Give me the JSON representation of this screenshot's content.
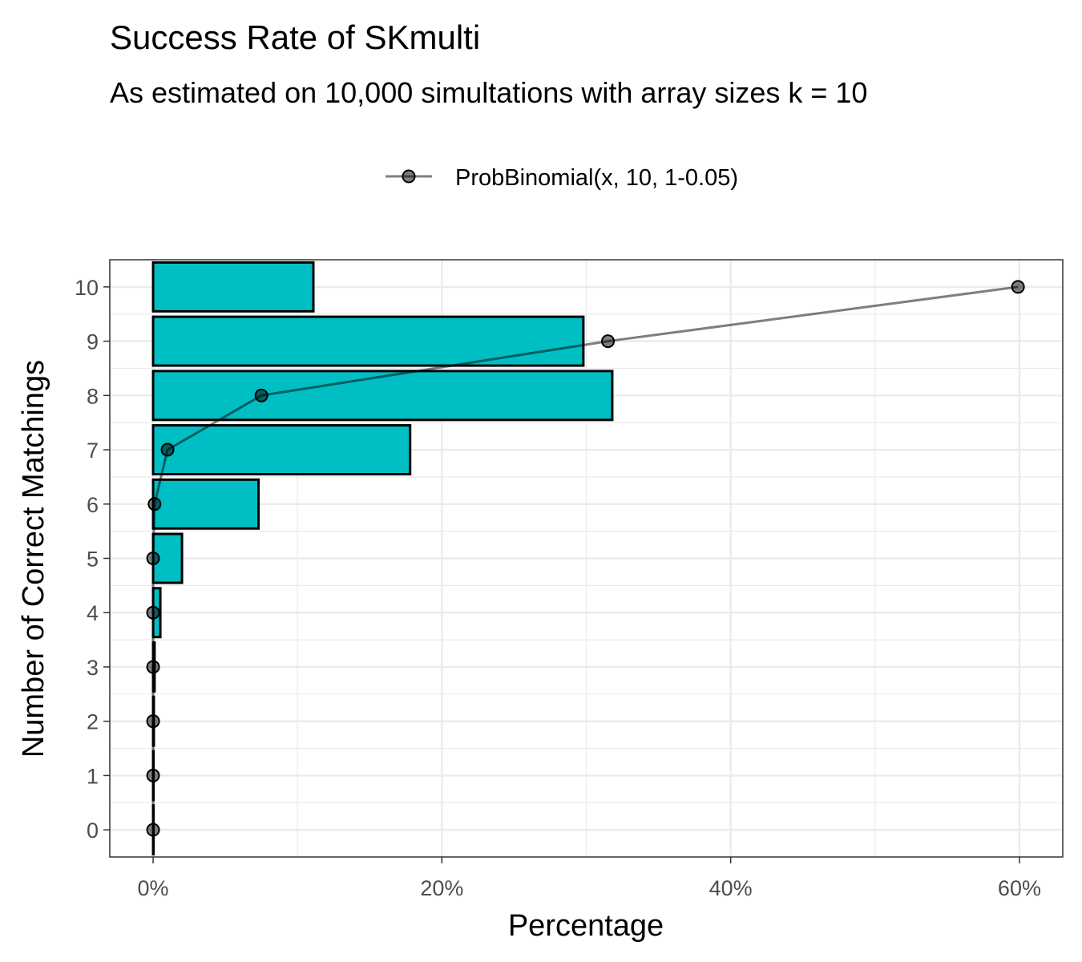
{
  "chart_data": {
    "type": "bar",
    "orientation": "horizontal",
    "title": "Success Rate of SKmulti",
    "subtitle": "As estimated on 10,000 simultations with array sizes k = 10",
    "xlabel": "Percentage",
    "ylabel": "Number of Correct Matchings",
    "x_unit": "%",
    "xlim": [
      -3,
      63
    ],
    "ylim": [
      -0.5,
      10.5
    ],
    "xticks": [
      0,
      20,
      40,
      60
    ],
    "xtick_labels": [
      "0%",
      "20%",
      "40%",
      "60%"
    ],
    "yticks": [
      0,
      1,
      2,
      3,
      4,
      5,
      6,
      7,
      8,
      9,
      10
    ],
    "ytick_labels": [
      "0",
      "1",
      "2",
      "3",
      "4",
      "5",
      "6",
      "7",
      "8",
      "9",
      "10"
    ],
    "grid": true,
    "legend_position": "top",
    "bar_color": "#00bfc4",
    "bar_outline": "#000000",
    "bars": {
      "categories": [
        0,
        1,
        2,
        3,
        4,
        5,
        6,
        7,
        8,
        9,
        10
      ],
      "values": [
        0,
        0.01,
        0.05,
        0.1,
        0.5,
        2.0,
        7.3,
        17.8,
        31.8,
        29.8,
        11.1
      ]
    },
    "series": [
      {
        "name": "ProbBinomial(x, 10, 1-0.05)",
        "type": "line",
        "color": "#000000",
        "x": [
          0.0,
          0.0,
          0.0,
          0.0,
          0.0,
          0.0,
          0.1,
          1.0,
          7.5,
          31.5,
          59.9
        ],
        "y": [
          0,
          1,
          2,
          3,
          4,
          5,
          6,
          7,
          8,
          9,
          10
        ]
      }
    ]
  }
}
